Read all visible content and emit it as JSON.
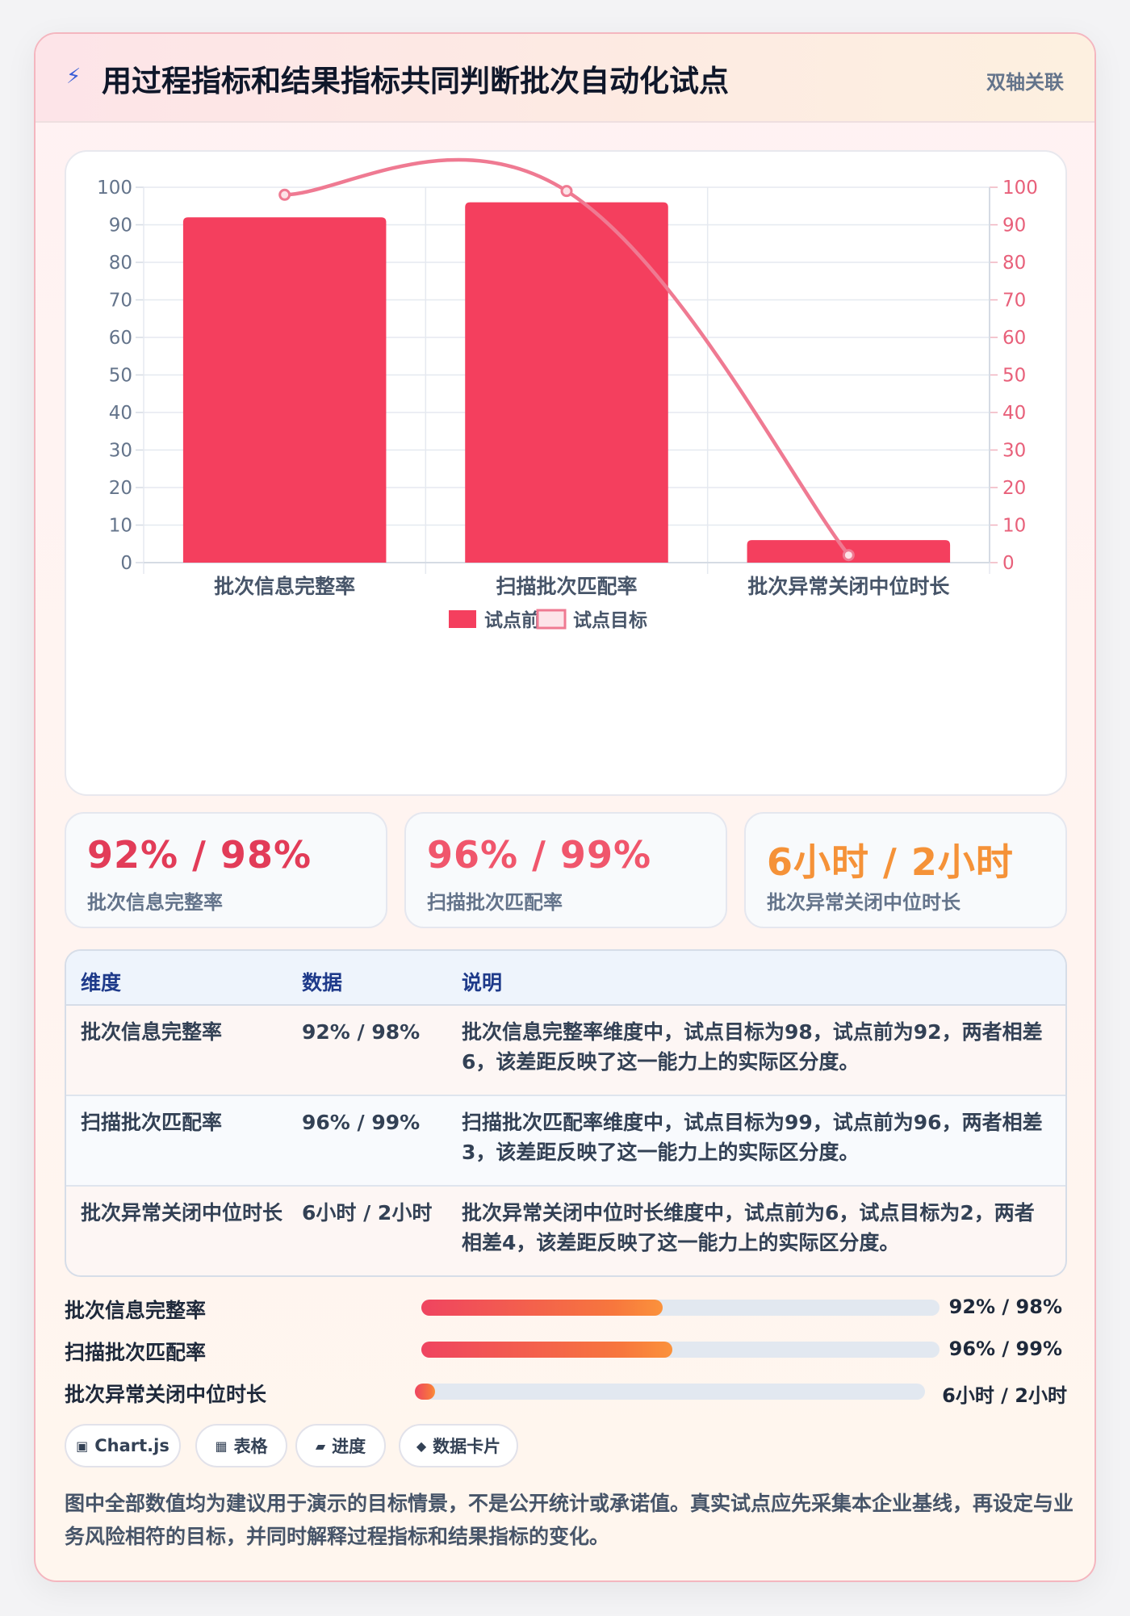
{
  "header": {
    "icon": "lightning-icon",
    "title": "用过程指标和结果指标共同判断批次自动化试点",
    "tag": "双轴关联"
  },
  "colors": {
    "bar": "#f43f5e",
    "line": "#ef7a92",
    "accent_red": "#e23c58",
    "accent_orange": "#f59238"
  },
  "chart_data": {
    "type": "bar",
    "categories": [
      "批次信息完整率",
      "扫描批次匹配率",
      "批次异常关闭中位时长"
    ],
    "series": [
      {
        "name": "试点前",
        "type": "bar",
        "values": [
          92,
          96,
          6
        ]
      },
      {
        "name": "试点目标",
        "type": "line",
        "values": [
          98,
          99,
          2
        ]
      }
    ],
    "ylim": [
      0,
      100
    ],
    "y2lim": [
      0,
      100
    ],
    "yticks": [
      0,
      10,
      20,
      30,
      40,
      50,
      60,
      70,
      80,
      90,
      100
    ],
    "grid": true,
    "legend": "bottom"
  },
  "stats": [
    {
      "value": "92% / 98%",
      "label": "批次信息完整率",
      "color": "#e23c58"
    },
    {
      "value": "96% / 99%",
      "label": "扫描批次匹配率",
      "color": "#f0566c"
    },
    {
      "value": "6小时 / 2小时",
      "label": "批次异常关闭中位时长",
      "color": "#f59238"
    }
  ],
  "table": {
    "headers": [
      "维度",
      "数据",
      "说明"
    ],
    "rows": [
      {
        "dim": "批次信息完整率",
        "data": "92% / 98%",
        "desc": "批次信息完整率维度中，试点目标为98，试点前为92，两者相差6，该差距反映了这一能力上的实际区分度。"
      },
      {
        "dim": "扫描批次匹配率",
        "data": "96% / 99%",
        "desc": "扫描批次匹配率维度中，试点目标为99，试点前为96，两者相差3，该差距反映了这一能力上的实际区分度。"
      },
      {
        "dim": "批次异常关闭中位时长",
        "data": "6小时 / 2小时",
        "desc": "批次异常关闭中位时长维度中，试点前为6，试点目标为2，两者相差4，该差距反映了这一能力上的实际区分度。"
      }
    ]
  },
  "progress": [
    {
      "label": "批次信息完整率",
      "value": "92% / 98%",
      "fill": 0.465
    },
    {
      "label": "扫描批次匹配率",
      "value": "96% / 99%",
      "fill": 0.485
    },
    {
      "label": "批次异常关闭中位时长",
      "value": "6小时 / 2小时",
      "fill": 0.04
    }
  ],
  "chips": [
    {
      "icon": "▣",
      "label": "Chart.js"
    },
    {
      "icon": "▦",
      "label": "表格"
    },
    {
      "icon": "▰",
      "label": "进度"
    },
    {
      "icon": "◆",
      "label": "数据卡片"
    }
  ],
  "note": "图中全部数值均为建议用于演示的目标情景，不是公开统计或承诺值。真实试点应先采集本企业基线，再设定与业务风险相符的目标，并同时解释过程指标和结果指标的变化。"
}
